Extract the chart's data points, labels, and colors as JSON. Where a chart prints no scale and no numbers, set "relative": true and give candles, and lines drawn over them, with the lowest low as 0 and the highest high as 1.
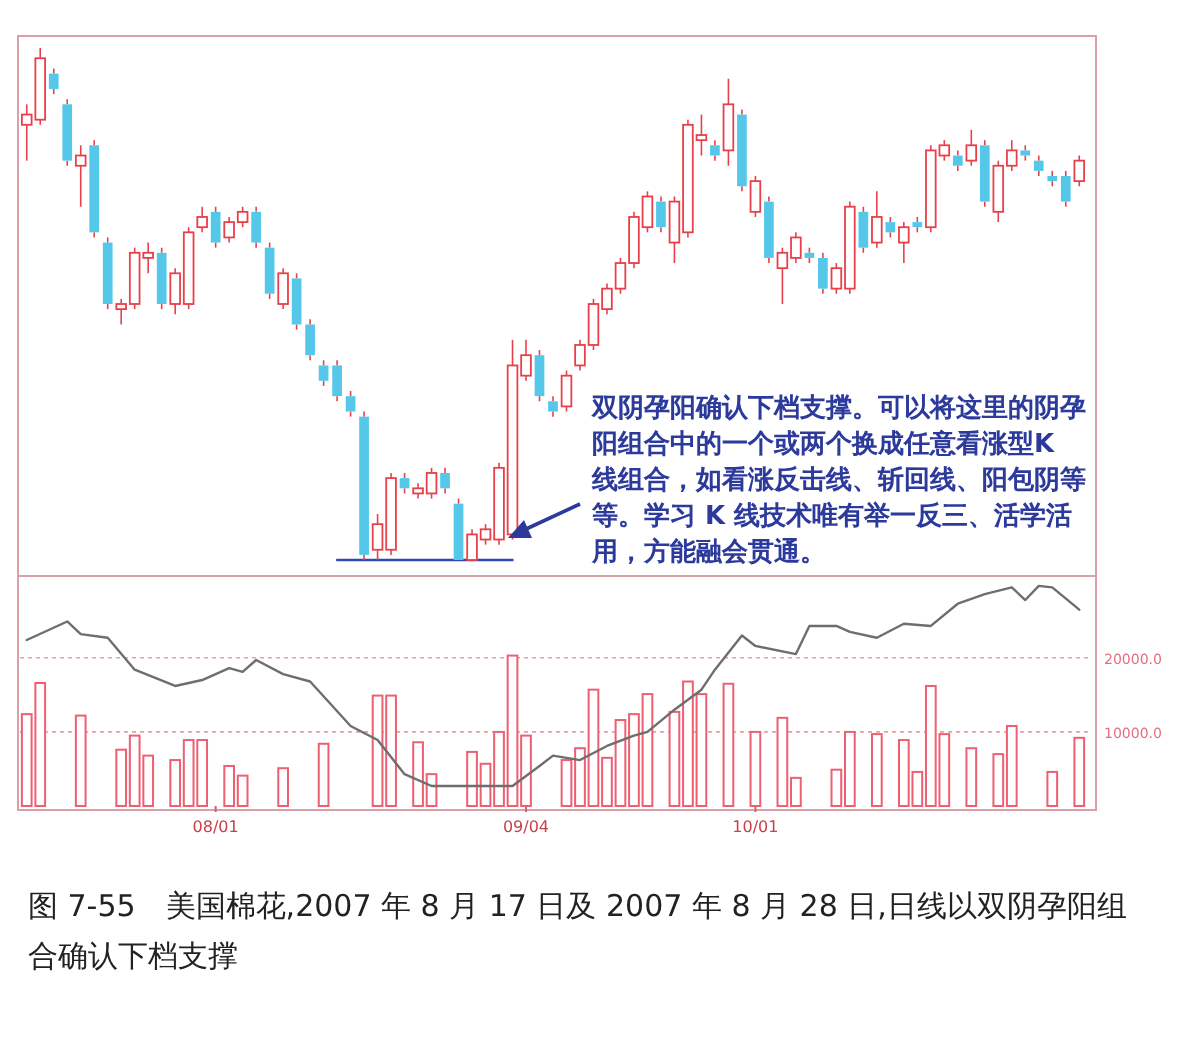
{
  "chart_data": [
    {
      "type": "candlestick",
      "relative": true,
      "categories": [
        null,
        null,
        null,
        null,
        null,
        null,
        null,
        null,
        null,
        null,
        null,
        null,
        null,
        null,
        null,
        null,
        null,
        null,
        null,
        null,
        null,
        null,
        null,
        null,
        null,
        null,
        null,
        null,
        null,
        null,
        null,
        null,
        null,
        null,
        null,
        null,
        null,
        null,
        null,
        null,
        null,
        null,
        null,
        null,
        null,
        null,
        null,
        null,
        null,
        null,
        null,
        null,
        null,
        null,
        null,
        null,
        null,
        null,
        null,
        null,
        null,
        null,
        null,
        null,
        null,
        null,
        null,
        null,
        null,
        null,
        null,
        null,
        null,
        null,
        null,
        null,
        null,
        null,
        null
      ],
      "ohlc": [
        [
          0.85,
          0.89,
          0.78,
          0.87
        ],
        [
          0.86,
          1.0,
          0.85,
          0.98
        ],
        [
          0.95,
          0.96,
          0.91,
          0.92
        ],
        [
          0.89,
          0.9,
          0.77,
          0.78
        ],
        [
          0.77,
          0.81,
          0.69,
          0.79
        ],
        [
          0.81,
          0.82,
          0.63,
          0.64
        ],
        [
          0.62,
          0.63,
          0.49,
          0.5
        ],
        [
          0.49,
          0.51,
          0.46,
          0.5
        ],
        [
          0.5,
          0.61,
          0.49,
          0.6
        ],
        [
          0.59,
          0.62,
          0.56,
          0.6
        ],
        [
          0.6,
          0.61,
          0.49,
          0.5
        ],
        [
          0.5,
          0.57,
          0.48,
          0.56
        ],
        [
          0.5,
          0.65,
          0.49,
          0.64
        ],
        [
          0.65,
          0.69,
          0.64,
          0.67
        ],
        [
          0.68,
          0.69,
          0.61,
          0.62
        ],
        [
          0.63,
          0.67,
          0.62,
          0.66
        ],
        [
          0.66,
          0.69,
          0.65,
          0.68
        ],
        [
          0.68,
          0.69,
          0.61,
          0.62
        ],
        [
          0.61,
          0.62,
          0.51,
          0.52
        ],
        [
          0.5,
          0.57,
          0.49,
          0.56
        ],
        [
          0.55,
          0.56,
          0.45,
          0.46
        ],
        [
          0.46,
          0.47,
          0.39,
          0.4
        ],
        [
          0.38,
          0.39,
          0.34,
          0.35
        ],
        [
          0.38,
          0.39,
          0.31,
          0.32
        ],
        [
          0.32,
          0.33,
          0.28,
          0.29
        ],
        [
          0.28,
          0.29,
          0.0,
          0.01
        ],
        [
          0.02,
          0.09,
          0.0,
          0.07
        ],
        [
          0.02,
          0.17,
          0.01,
          0.16
        ],
        [
          0.16,
          0.17,
          0.13,
          0.14
        ],
        [
          0.13,
          0.15,
          0.12,
          0.14
        ],
        [
          0.13,
          0.18,
          0.12,
          0.17
        ],
        [
          0.17,
          0.18,
          0.13,
          0.14
        ],
        [
          0.11,
          0.12,
          0.0,
          0.0
        ],
        [
          0.0,
          0.06,
          0.0,
          0.05
        ],
        [
          0.04,
          0.07,
          0.03,
          0.06
        ],
        [
          0.04,
          0.19,
          0.03,
          0.18
        ],
        [
          0.05,
          0.43,
          0.04,
          0.38
        ],
        [
          0.36,
          0.43,
          0.35,
          0.4
        ],
        [
          0.4,
          0.41,
          0.31,
          0.32
        ],
        [
          0.31,
          0.32,
          0.28,
          0.29
        ],
        [
          0.3,
          0.37,
          0.29,
          0.36
        ],
        [
          0.38,
          0.43,
          0.37,
          0.42
        ],
        [
          0.42,
          0.51,
          0.41,
          0.5
        ],
        [
          0.49,
          0.54,
          0.48,
          0.53
        ],
        [
          0.53,
          0.59,
          0.52,
          0.58
        ],
        [
          0.58,
          0.68,
          0.57,
          0.67
        ],
        [
          0.65,
          0.72,
          0.64,
          0.71
        ],
        [
          0.7,
          0.71,
          0.64,
          0.65
        ],
        [
          0.62,
          0.71,
          0.58,
          0.7
        ],
        [
          0.64,
          0.86,
          0.63,
          0.85
        ],
        [
          0.82,
          0.87,
          0.79,
          0.83
        ],
        [
          0.81,
          0.82,
          0.78,
          0.79
        ],
        [
          0.8,
          0.94,
          0.77,
          0.89
        ],
        [
          0.87,
          0.88,
          0.72,
          0.73
        ],
        [
          0.68,
          0.75,
          0.67,
          0.74
        ],
        [
          0.7,
          0.71,
          0.58,
          0.59
        ],
        [
          0.57,
          0.61,
          0.5,
          0.6
        ],
        [
          0.59,
          0.64,
          0.58,
          0.63
        ],
        [
          0.6,
          0.61,
          0.58,
          0.59
        ],
        [
          0.59,
          0.6,
          0.52,
          0.53
        ],
        [
          0.53,
          0.58,
          0.52,
          0.57
        ],
        [
          0.53,
          0.7,
          0.52,
          0.69
        ],
        [
          0.68,
          0.69,
          0.6,
          0.61
        ],
        [
          0.62,
          0.72,
          0.61,
          0.67
        ],
        [
          0.66,
          0.67,
          0.63,
          0.64
        ],
        [
          0.62,
          0.66,
          0.58,
          0.65
        ],
        [
          0.66,
          0.67,
          0.64,
          0.65
        ],
        [
          0.65,
          0.81,
          0.64,
          0.8
        ],
        [
          0.79,
          0.82,
          0.78,
          0.81
        ],
        [
          0.79,
          0.8,
          0.76,
          0.77
        ],
        [
          0.78,
          0.84,
          0.77,
          0.81
        ],
        [
          0.81,
          0.82,
          0.69,
          0.7
        ],
        [
          0.68,
          0.78,
          0.66,
          0.77
        ],
        [
          0.77,
          0.82,
          0.76,
          0.8
        ],
        [
          0.8,
          0.81,
          0.78,
          0.79
        ],
        [
          0.78,
          0.79,
          0.75,
          0.76
        ],
        [
          0.75,
          0.76,
          0.73,
          0.74
        ],
        [
          0.75,
          0.76,
          0.69,
          0.7
        ],
        [
          0.74,
          0.79,
          0.73,
          0.78
        ]
      ],
      "series": [
        {
          "type": "line",
          "color": "#3348b8",
          "values": [
            null,
            null,
            null,
            null,
            null,
            null,
            null,
            null,
            null,
            null,
            null,
            null,
            null,
            null,
            null,
            null,
            null,
            null,
            null,
            null,
            null,
            null,
            null,
            0,
            null,
            null,
            null,
            null,
            null,
            null,
            null,
            null,
            null,
            null,
            null,
            null,
            0,
            null,
            null,
            null,
            null,
            null,
            null,
            null,
            null,
            null,
            null,
            null,
            null,
            null,
            null,
            null,
            null,
            null,
            null,
            null,
            null,
            null,
            null,
            null,
            null,
            null,
            null,
            null,
            null,
            null,
            null,
            null,
            null,
            null,
            null,
            null,
            null,
            null,
            null,
            null,
            null,
            null,
            null
          ]
        }
      ],
      "annotations": [
        "双阴孕阳确认下档支撑。可以将这里的阴孕阳组合中的一个或两个换成任意看涨型K 线组合，如看涨反击线、斩回线、阳包阴等等。学习 K 线技术唯有举一反三、活学活用，方能融会贯通。"
      ]
    },
    {
      "type": "bar",
      "grid": "y",
      "categories": [
        null,
        null,
        null,
        null,
        null,
        null,
        null,
        null,
        null,
        null,
        null,
        null,
        null,
        null,
        "08/01",
        null,
        null,
        null,
        null,
        null,
        null,
        null,
        null,
        null,
        null,
        null,
        null,
        null,
        null,
        null,
        null,
        null,
        null,
        null,
        null,
        null,
        null,
        "09/04",
        null,
        null,
        null,
        null,
        null,
        null,
        null,
        null,
        null,
        null,
        null,
        null,
        null,
        null,
        null,
        null,
        "10/01",
        null,
        null,
        null,
        null,
        null,
        null,
        null,
        null,
        null,
        null,
        null,
        null,
        null,
        null,
        null,
        null,
        null,
        null,
        null,
        null,
        null,
        null,
        null,
        null
      ],
      "ylim": [
        0,
        30500
      ],
      "yticks": [
        {
          "value": 10000,
          "label": "10000.0"
        },
        {
          "value": 20000,
          "label": "20000.0"
        }
      ],
      "series": [
        {
          "type": "bar",
          "color": "#ee5f72",
          "values": [
            12400,
            16600,
            null,
            null,
            12200,
            null,
            null,
            7600,
            9500,
            6800,
            null,
            6200,
            8900,
            8900,
            null,
            5400,
            4100,
            null,
            null,
            5100,
            null,
            null,
            8400,
            null,
            null,
            null,
            14900,
            14900,
            null,
            8600,
            4300,
            null,
            null,
            7300,
            5700,
            10000,
            20300,
            9500,
            null,
            null,
            6200,
            7800,
            15700,
            6500,
            11600,
            12400,
            15100,
            null,
            12700,
            16800,
            15100,
            null,
            16500,
            null,
            10000,
            null,
            11900,
            3800,
            null,
            null,
            4900,
            10000,
            null,
            9700,
            null,
            8900,
            4600,
            16200,
            9700,
            null,
            7800,
            null,
            7000,
            10800,
            null,
            null,
            4600,
            null,
            9200
          ]
        },
        {
          "type": "line",
          "color": "#6e6e6e",
          "values": [
            22400,
            null,
            null,
            24900,
            23200,
            null,
            22700,
            null,
            18400,
            null,
            null,
            16200,
            null,
            17000,
            null,
            18600,
            18100,
            19700,
            null,
            17800,
            null,
            16800,
            null,
            null,
            10800,
            null,
            8900,
            null,
            4300,
            null,
            2700,
            null,
            null,
            null,
            null,
            null,
            2700,
            null,
            5400,
            6800,
            null,
            6200,
            null,
            8100,
            null,
            9500,
            10000,
            null,
            13000,
            null,
            15700,
            18400,
            null,
            23000,
            21600,
            null,
            null,
            20500,
            24300,
            null,
            24300,
            23500,
            null,
            22700,
            null,
            24600,
            null,
            24300,
            null,
            27300,
            null,
            28600,
            null,
            29500,
            27800,
            29700,
            29500,
            null,
            26500
          ]
        }
      ],
      "annotations": [
        "图 7-55　美国棉花,2007 年 8 月 17 日及 2007 年 8 月 28 日,日线以双阴孕阳组合确认下档支撑"
      ]
    }
  ]
}
